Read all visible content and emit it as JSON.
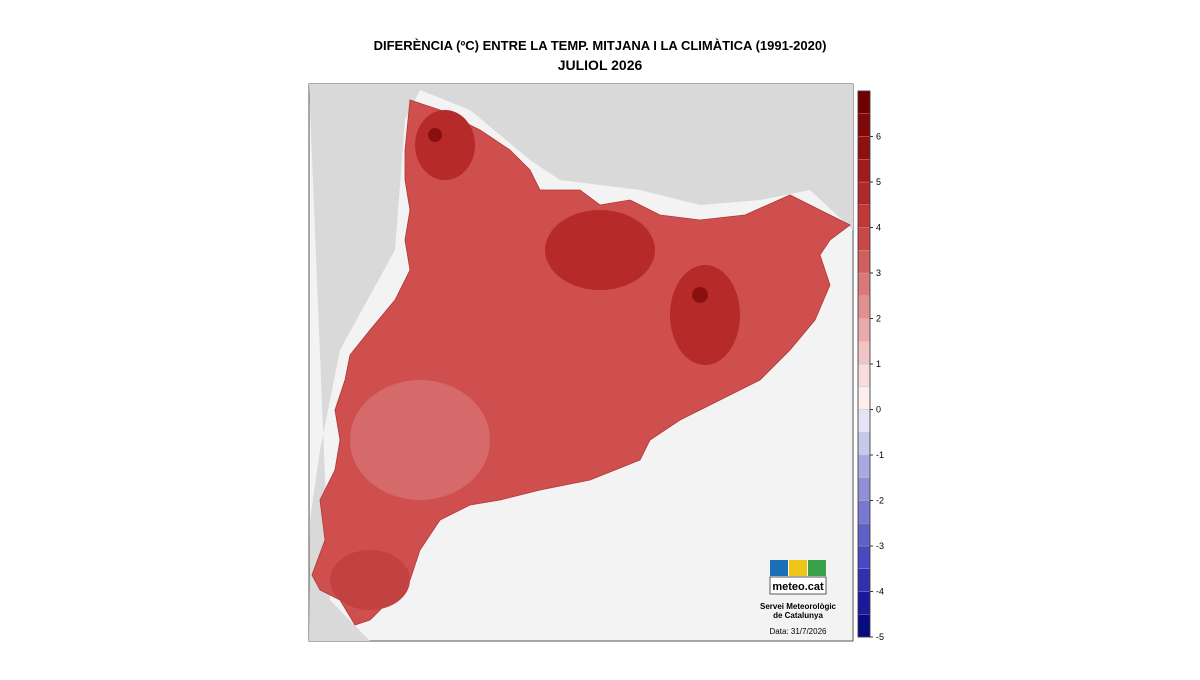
{
  "title": "DIFERÈNCIA (ºC) ENTRE LA TEMP. MITJANA I LA CLIMÀTICA (1991-2020)",
  "subtitle": "JULIOL 2026",
  "colorbar": {
    "lim": [
      -5,
      7
    ],
    "ticks": [
      6,
      5,
      4,
      3,
      2,
      1,
      0,
      -1,
      -2,
      -3,
      -4,
      -5
    ],
    "colors": [
      "#0a0a80",
      "#1a1a9a",
      "#3030b0",
      "#4848c0",
      "#6060c8",
      "#7878d0",
      "#9090d8",
      "#a8a8e0",
      "#c8c8ec",
      "#e4e4f4",
      "#fbeeee",
      "#f6dcdc",
      "#f0c4c4",
      "#e8aaaa",
      "#e09090",
      "#d87878",
      "#d06060",
      "#c84848",
      "#c03838",
      "#b02828",
      "#a01c1c",
      "#901010",
      "#800808",
      "#700000"
    ]
  },
  "logo": {
    "brand": "meteo.cat",
    "org_line1": "Servei Meteorològic",
    "org_line2": "de Catalunya",
    "date": "Data: 31/7/2026"
  }
}
